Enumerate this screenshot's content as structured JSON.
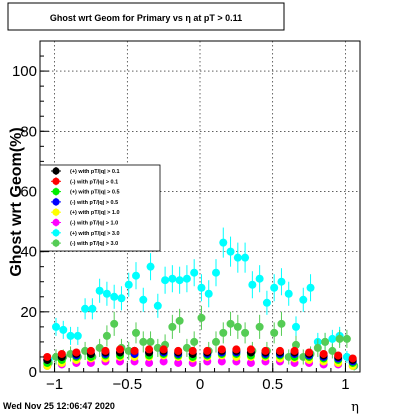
{
  "title": "Ghost wrt Geom for Primary vs   η at pT > 0.11",
  "timestamp": "Wed Nov 25 12:06:47 2020",
  "chart_data": {
    "type": "scatter",
    "title": "Ghost wrt Geom for Primary vs   η at pT > 0.11",
    "xlabel": "η",
    "ylabel": "Ghost wrt Geom(%)",
    "xlim": [
      -1.1,
      1.1
    ],
    "ylim": [
      0,
      110
    ],
    "xticks": [
      -1,
      -0.5,
      0,
      0.5,
      1
    ],
    "xtick_labels": [
      "−1",
      "−0.5",
      "0",
      "0.5",
      "1"
    ],
    "yticks": [
      0,
      20,
      40,
      60,
      80,
      100
    ],
    "ytick_labels": [
      "0",
      "20",
      "40",
      "60",
      "80",
      "100"
    ],
    "grid": true,
    "legend_position": "left",
    "series": [
      {
        "name": "(+) with pT/|q| > 0.1",
        "color": "#000000",
        "x": [
          -1.05,
          -0.95,
          -0.85,
          -0.75,
          -0.65,
          -0.55,
          -0.45,
          -0.35,
          -0.25,
          -0.15,
          -0.05,
          0.05,
          0.15,
          0.25,
          0.35,
          0.45,
          0.55,
          0.65,
          0.75,
          0.85,
          0.95,
          1.05
        ],
        "y": [
          4,
          5,
          6,
          6,
          6.5,
          6.5,
          7,
          6.5,
          7,
          6.5,
          6,
          6.5,
          7,
          7,
          6.5,
          6.5,
          6.5,
          6.5,
          6,
          5.5,
          5,
          4
        ],
        "err": [
          1,
          1,
          1,
          1,
          1,
          1,
          1,
          1,
          1,
          1,
          1,
          1,
          1,
          1,
          1,
          1,
          1,
          1,
          1,
          1,
          1,
          1
        ]
      },
      {
        "name": "(-) with pT/|q| > 0.1",
        "color": "#ff0000",
        "x": [
          -1.05,
          -0.95,
          -0.85,
          -0.75,
          -0.65,
          -0.55,
          -0.45,
          -0.35,
          -0.25,
          -0.15,
          -0.05,
          0.05,
          0.15,
          0.25,
          0.35,
          0.45,
          0.55,
          0.65,
          0.75,
          0.85,
          0.95,
          1.05
        ],
        "y": [
          5,
          6,
          6.5,
          7,
          7,
          7.5,
          7,
          7.5,
          7.5,
          7,
          7,
          7,
          7.5,
          7.5,
          7.5,
          7,
          7,
          7,
          6.5,
          6,
          5.5,
          4.5
        ],
        "err": [
          1,
          1,
          1,
          1,
          1,
          1,
          1,
          1,
          1,
          1,
          1,
          1,
          1,
          1,
          1,
          1,
          1,
          1,
          1,
          1,
          1,
          1
        ]
      },
      {
        "name": "(+) with pT/|q| > 0.5",
        "color": "#00ee00",
        "x": [
          -1.05,
          -0.95,
          -0.85,
          -0.75,
          -0.65,
          -0.55,
          -0.45,
          -0.35,
          -0.25,
          -0.15,
          -0.05,
          0.05,
          0.15,
          0.25,
          0.35,
          0.45,
          0.55,
          0.65,
          0.75,
          0.85,
          0.95,
          1.05
        ],
        "y": [
          3,
          4,
          5,
          5,
          5.5,
          5.5,
          6,
          5.5,
          6,
          5.5,
          5,
          5.5,
          6,
          6,
          5.5,
          5.5,
          5.5,
          5,
          5,
          4.5,
          4,
          3
        ],
        "err": [
          1,
          1,
          1,
          1,
          1,
          1,
          1,
          1,
          1,
          1,
          1,
          1,
          1,
          1,
          1,
          1,
          1,
          1,
          1,
          1,
          1,
          1
        ]
      },
      {
        "name": "(-) with pT/|q| > 0.5",
        "color": "#0000ff",
        "x": [
          -1.05,
          -0.95,
          -0.85,
          -0.75,
          -0.65,
          -0.55,
          -0.45,
          -0.35,
          -0.25,
          -0.15,
          -0.05,
          0.05,
          0.15,
          0.25,
          0.35,
          0.45,
          0.55,
          0.65,
          0.75,
          0.85,
          0.95,
          1.05
        ],
        "y": [
          4,
          5,
          5.5,
          6,
          6,
          6.5,
          6,
          6.5,
          6.5,
          6,
          6,
          6,
          6.5,
          6.5,
          6.5,
          6,
          6,
          6,
          5.5,
          5,
          4.5,
          3.5
        ],
        "err": [
          1,
          1,
          1,
          1,
          1,
          1,
          1,
          1,
          1,
          1,
          1,
          1,
          1,
          1,
          1,
          1,
          1,
          1,
          1,
          1,
          1,
          1
        ]
      },
      {
        "name": "(+) with pT/|q| > 1.0",
        "color": "#ffff00",
        "x": [
          -1.05,
          -0.95,
          -0.85,
          -0.75,
          -0.65,
          -0.55,
          -0.45,
          -0.35,
          -0.25,
          -0.15,
          -0.05,
          0.05,
          0.15,
          0.25,
          0.35,
          0.45,
          0.55,
          0.65,
          0.75,
          0.85,
          0.95,
          1.05
        ],
        "y": [
          2,
          3,
          4,
          4.5,
          4.5,
          5,
          5,
          5,
          5.5,
          5,
          4.5,
          5,
          5.5,
          5,
          5,
          5,
          4.5,
          4.5,
          4,
          3.5,
          3,
          2
        ],
        "err": [
          1,
          1,
          1,
          1,
          1,
          1,
          1,
          1,
          1,
          1,
          1,
          1,
          1,
          1,
          1,
          1,
          1,
          1,
          1,
          1,
          1,
          1
        ]
      },
      {
        "name": "(-) with pT/|q| > 1.0",
        "color": "#ff00ff",
        "x": [
          -1.05,
          -0.95,
          -0.85,
          -0.75,
          -0.65,
          -0.55,
          -0.45,
          -0.35,
          -0.25,
          -0.15,
          -0.05,
          0.05,
          0.15,
          0.25,
          0.35,
          0.45,
          0.55,
          0.65,
          0.75,
          0.85,
          0.95,
          1.05
        ],
        "y": [
          2,
          2.5,
          3,
          3,
          3.5,
          3.5,
          3.5,
          3,
          3.5,
          3,
          3,
          3.5,
          3.5,
          3.5,
          3,
          3.5,
          3.5,
          3,
          3,
          2.5,
          2.5,
          2
        ],
        "err": [
          1,
          1,
          1,
          1,
          1,
          1,
          1,
          1,
          1,
          1,
          1,
          1,
          1,
          1,
          1,
          1,
          1,
          1,
          1,
          1,
          1,
          1
        ]
      },
      {
        "name": "(+) with pT/|q| > 3.0",
        "color": "#00ffff",
        "x": [
          -1.04,
          -0.99,
          -0.94,
          -0.89,
          -0.84,
          -0.79,
          -0.74,
          -0.69,
          -0.64,
          -0.59,
          -0.54,
          -0.49,
          -0.44,
          -0.39,
          -0.34,
          -0.29,
          -0.24,
          -0.19,
          -0.14,
          -0.09,
          -0.04,
          0.01,
          0.06,
          0.11,
          0.16,
          0.21,
          0.26,
          0.31,
          0.36,
          0.41,
          0.46,
          0.51,
          0.56,
          0.61,
          0.66,
          0.71,
          0.76,
          0.81,
          0.86,
          0.91,
          0.96,
          1.01,
          1.06
        ],
        "y": [
          4,
          15,
          14,
          12,
          12,
          21,
          21,
          27,
          26,
          25,
          24.5,
          29,
          32,
          24,
          35,
          22,
          30.5,
          31,
          30.5,
          31,
          33,
          28,
          26,
          33,
          43,
          40,
          38,
          38,
          29,
          31,
          23,
          28,
          30,
          26,
          15,
          24,
          28,
          10,
          10,
          11,
          12,
          5,
          2
        ],
        "err": [
          2,
          3,
          3,
          3,
          3,
          3.5,
          3.5,
          4,
          4,
          4,
          4,
          4,
          4.5,
          4,
          4.5,
          4,
          4.5,
          4.5,
          4.5,
          4.5,
          4.5,
          4.5,
          4.5,
          4.5,
          5,
          5,
          5,
          5,
          4.5,
          4.5,
          4,
          4.5,
          4.5,
          4,
          3.5,
          4,
          4.5,
          3,
          3,
          3,
          3,
          2,
          1.5
        ]
      },
      {
        "name": "(-) with pT/|q| > 3.0",
        "color": "#55cc55",
        "x": [
          -1.04,
          -0.99,
          -0.94,
          -0.89,
          -0.84,
          -0.79,
          -0.74,
          -0.69,
          -0.64,
          -0.59,
          -0.54,
          -0.49,
          -0.44,
          -0.39,
          -0.34,
          -0.29,
          -0.24,
          -0.19,
          -0.14,
          -0.09,
          -0.04,
          0.01,
          0.06,
          0.11,
          0.16,
          0.21,
          0.26,
          0.31,
          0.36,
          0.41,
          0.46,
          0.51,
          0.56,
          0.61,
          0.66,
          0.71,
          0.76,
          0.81,
          0.86,
          0.91,
          0.96,
          1.01,
          1.06
        ],
        "y": [
          3,
          5,
          5,
          6,
          5,
          7,
          5,
          8,
          12,
          16,
          8,
          7,
          13,
          10,
          10,
          8,
          9,
          15,
          17,
          8,
          10,
          18,
          7,
          10,
          13,
          16,
          15,
          13,
          7,
          15,
          7,
          13,
          16,
          5,
          9,
          5,
          6,
          8,
          10,
          7,
          11,
          11,
          2
        ],
        "err": [
          2,
          2.5,
          2.5,
          2.5,
          2.5,
          3,
          2.5,
          3,
          3.5,
          4,
          3,
          3,
          3.5,
          3.5,
          3.5,
          3,
          3.5,
          4,
          4,
          3,
          3.5,
          4,
          3,
          3.5,
          3.5,
          4,
          4,
          3.5,
          3,
          4,
          3,
          3.5,
          4,
          2.5,
          3,
          2.5,
          2.5,
          3,
          3,
          2.5,
          3,
          3,
          1.5
        ]
      }
    ]
  }
}
